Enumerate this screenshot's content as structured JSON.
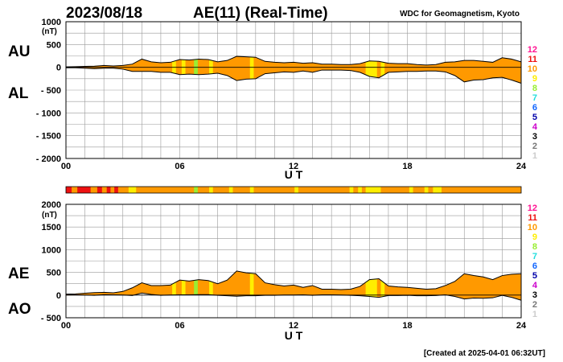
{
  "header": {
    "date": "2023/08/18",
    "title": "AE(11) (Real-Time)",
    "source": "WDC for Geomagnetism, Kyoto",
    "created": "[Created at 2025-04-01 06:32UT]"
  },
  "colors": {
    "fill_main": "#ff9900",
    "fill_yellow": "#ffee00",
    "fill_green": "#99ee33",
    "fill_red": "#ee1111",
    "grid": "#999999"
  },
  "legend": {
    "items": [
      {
        "label": "12",
        "color": "#ff1493"
      },
      {
        "label": "11",
        "color": "#ee1111"
      },
      {
        "label": "10",
        "color": "#ff9900"
      },
      {
        "label": "9",
        "color": "#ffee00"
      },
      {
        "label": "8",
        "color": "#99ee33"
      },
      {
        "label": "7",
        "color": "#22dddd"
      },
      {
        "label": "6",
        "color": "#1166ff"
      },
      {
        "label": "5",
        "color": "#0000aa"
      },
      {
        "label": "4",
        "color": "#cc00cc"
      },
      {
        "label": "3",
        "color": "#000000"
      },
      {
        "label": "2",
        "color": "#777777"
      },
      {
        "label": "1",
        "color": "#cccccc"
      }
    ]
  },
  "chart_data": [
    {
      "type": "area",
      "panel": "AU/AL",
      "series_labels": [
        "AU",
        "AL"
      ],
      "ylabel": "(nT)",
      "xlabel": "U T",
      "ylim": [
        -2000,
        1000
      ],
      "xlim": [
        0,
        24
      ],
      "x_ticks": [
        "00",
        "06",
        "12",
        "18",
        "24"
      ],
      "y_ticks": [
        "1000",
        "500",
        "0",
        "- 500",
        "- 1000",
        "- 1500",
        "- 2000"
      ],
      "y_tick_values": [
        1000,
        500,
        0,
        -500,
        -1000,
        -1500,
        -2000
      ],
      "grid": true,
      "x": [
        0,
        0.5,
        1,
        1.5,
        2,
        2.5,
        3,
        3.5,
        4,
        4.5,
        5,
        5.5,
        6,
        6.5,
        7,
        7.5,
        8,
        8.5,
        9,
        9.5,
        10,
        10.5,
        11,
        11.5,
        12,
        12.5,
        13,
        13.5,
        14,
        14.5,
        15,
        15.5,
        16,
        16.5,
        17,
        17.5,
        18,
        18.5,
        19,
        19.5,
        20,
        20.5,
        21,
        21.5,
        22,
        22.5,
        23,
        23.5,
        24
      ],
      "upper": [
        10,
        15,
        20,
        25,
        40,
        30,
        40,
        70,
        180,
        120,
        100,
        110,
        170,
        160,
        180,
        170,
        120,
        150,
        240,
        230,
        220,
        130,
        110,
        100,
        110,
        90,
        100,
        70,
        70,
        60,
        60,
        80,
        140,
        130,
        90,
        80,
        80,
        60,
        50,
        60,
        110,
        120,
        150,
        150,
        130,
        110,
        210,
        180,
        120
      ],
      "lower": [
        -10,
        -10,
        -20,
        -30,
        -20,
        -20,
        -40,
        -90,
        -90,
        -90,
        -110,
        -110,
        -160,
        -150,
        -160,
        -150,
        -130,
        -180,
        -290,
        -260,
        -250,
        -140,
        -120,
        -100,
        -110,
        -80,
        -110,
        -60,
        -60,
        -60,
        -70,
        -110,
        -200,
        -230,
        -110,
        -100,
        -90,
        -90,
        -80,
        -80,
        -100,
        -180,
        -320,
        -280,
        -270,
        -230,
        -220,
        -280,
        -350
      ]
    },
    {
      "type": "area",
      "panel": "AE/AO",
      "series_labels": [
        "AE",
        "AO"
      ],
      "ylabel": "(nT)",
      "xlabel": "U T",
      "ylim": [
        -500,
        2000
      ],
      "xlim": [
        0,
        24
      ],
      "x_ticks": [
        "00",
        "06",
        "12",
        "18",
        "24"
      ],
      "y_ticks": [
        "2000",
        "1500",
        "1000",
        "500",
        "0",
        "- 500"
      ],
      "y_tick_values": [
        2000,
        1500,
        1000,
        500,
        0,
        -500
      ],
      "grid": true,
      "x": [
        0,
        0.5,
        1,
        1.5,
        2,
        2.5,
        3,
        3.5,
        4,
        4.5,
        5,
        5.5,
        6,
        6.5,
        7,
        7.5,
        8,
        8.5,
        9,
        9.5,
        10,
        10.5,
        11,
        11.5,
        12,
        12.5,
        13,
        13.5,
        14,
        14.5,
        15,
        15.5,
        16,
        16.5,
        17,
        17.5,
        18,
        18.5,
        19,
        19.5,
        20,
        20.5,
        21,
        21.5,
        22,
        22.5,
        23,
        23.5,
        24
      ],
      "upper": [
        20,
        25,
        40,
        55,
        60,
        50,
        80,
        160,
        270,
        210,
        210,
        220,
        330,
        310,
        340,
        320,
        250,
        330,
        530,
        490,
        470,
        270,
        230,
        200,
        220,
        170,
        210,
        130,
        130,
        120,
        130,
        190,
        340,
        360,
        200,
        180,
        170,
        150,
        130,
        140,
        210,
        300,
        470,
        430,
        400,
        340,
        430,
        460,
        470
      ],
      "lower": [
        0,
        2,
        0,
        -5,
        10,
        5,
        0,
        -10,
        45,
        15,
        -5,
        0,
        5,
        5,
        10,
        10,
        -5,
        -15,
        -25,
        -15,
        -15,
        -5,
        -5,
        0,
        0,
        5,
        -5,
        5,
        5,
        0,
        -5,
        -15,
        -30,
        -50,
        -10,
        -10,
        -5,
        -15,
        -15,
        -10,
        5,
        -30,
        -85,
        -65,
        -70,
        -60,
        -5,
        -50,
        -115
      ]
    }
  ],
  "quality_strip": {
    "default_color": "#ff9900",
    "segments": [
      {
        "start": 0.0,
        "end": 0.3,
        "color": "#ee1111"
      },
      {
        "start": 0.6,
        "end": 1.3,
        "color": "#ee1111"
      },
      {
        "start": 1.65,
        "end": 1.9,
        "color": "#ee1111"
      },
      {
        "start": 2.15,
        "end": 2.35,
        "color": "#ee1111"
      },
      {
        "start": 2.55,
        "end": 2.75,
        "color": "#ee1111"
      },
      {
        "start": 3.3,
        "end": 3.7,
        "color": "#ffee00"
      },
      {
        "start": 6.75,
        "end": 6.95,
        "color": "#99ee33"
      },
      {
        "start": 7.55,
        "end": 7.75,
        "color": "#ffee00"
      },
      {
        "start": 8.6,
        "end": 8.8,
        "color": "#ffee00"
      },
      {
        "start": 9.7,
        "end": 9.9,
        "color": "#ffee00"
      },
      {
        "start": 12.05,
        "end": 12.25,
        "color": "#ffee00"
      },
      {
        "start": 14.95,
        "end": 15.15,
        "color": "#ffee00"
      },
      {
        "start": 15.4,
        "end": 15.6,
        "color": "#ffee00"
      },
      {
        "start": 15.8,
        "end": 16.6,
        "color": "#ffee00"
      },
      {
        "start": 18.1,
        "end": 18.3,
        "color": "#ffee00"
      },
      {
        "start": 18.9,
        "end": 19.1,
        "color": "#ffee00"
      },
      {
        "start": 19.35,
        "end": 19.8,
        "color": "#ffee00"
      }
    ]
  },
  "highlight_bands": [
    {
      "start": 5.6,
      "end": 5.8,
      "color": "#ffee00"
    },
    {
      "start": 6.1,
      "end": 6.3,
      "color": "#ffee00"
    },
    {
      "start": 6.75,
      "end": 6.95,
      "color": "#99ee33"
    },
    {
      "start": 7.55,
      "end": 7.75,
      "color": "#ffee00"
    },
    {
      "start": 9.7,
      "end": 9.9,
      "color": "#ffee00"
    },
    {
      "start": 15.8,
      "end": 16.4,
      "color": "#ffee00"
    },
    {
      "start": 16.6,
      "end": 16.8,
      "color": "#ffee00"
    }
  ]
}
